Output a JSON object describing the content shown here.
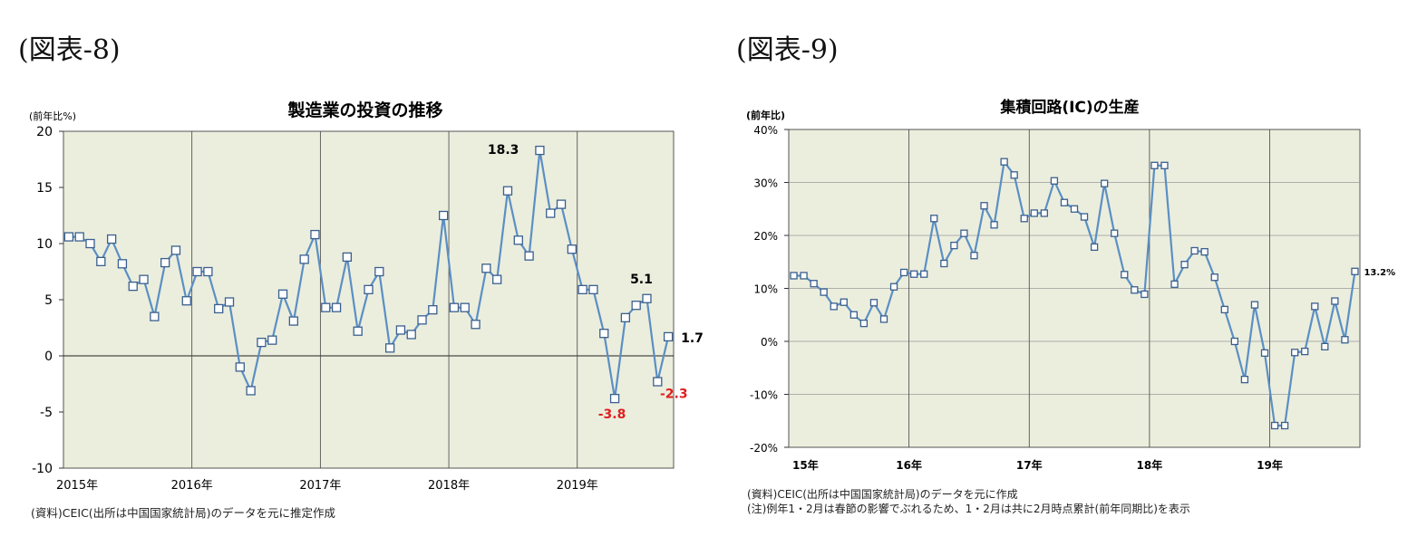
{
  "figures": [
    {
      "label": "(図表-8)"
    },
    {
      "label": "(図表-9)"
    }
  ],
  "chart_data": [
    {
      "type": "line",
      "title": "製造業の投資の推移",
      "ylabel": "(前年比%)",
      "ylim": [
        -10,
        20
      ],
      "yticks": [
        "20",
        "15",
        "10",
        "5",
        "0",
        "-5",
        "-10"
      ],
      "ytick_values": [
        20,
        15,
        10,
        5,
        0,
        -5,
        -10
      ],
      "xticks": [
        "2015年",
        "2016年",
        "2017年",
        "2018年",
        "2019年"
      ],
      "x": [
        "2015-01",
        "2015-02",
        "2015-03",
        "2015-04",
        "2015-05",
        "2015-06",
        "2015-07",
        "2015-08",
        "2015-09",
        "2015-10",
        "2015-11",
        "2015-12",
        "2016-01",
        "2016-02",
        "2016-03",
        "2016-04",
        "2016-05",
        "2016-06",
        "2016-07",
        "2016-08",
        "2016-09",
        "2016-10",
        "2016-11",
        "2016-12",
        "2017-01",
        "2017-02",
        "2017-03",
        "2017-04",
        "2017-05",
        "2017-06",
        "2017-07",
        "2017-08",
        "2017-09",
        "2017-10",
        "2017-11",
        "2017-12",
        "2018-01",
        "2018-02",
        "2018-03",
        "2018-04",
        "2018-05",
        "2018-06",
        "2018-07",
        "2018-08",
        "2018-09",
        "2018-10",
        "2018-11",
        "2018-12",
        "2019-01",
        "2019-02",
        "2019-03",
        "2019-04",
        "2019-05",
        "2019-06",
        "2019-07",
        "2019-08",
        "2019-09"
      ],
      "series": [
        {
          "values": [
            10.6,
            10.6,
            10.0,
            8.4,
            10.4,
            8.2,
            6.2,
            6.8,
            3.5,
            8.3,
            9.4,
            4.9,
            7.5,
            7.5,
            4.2,
            4.8,
            -1.0,
            -3.1,
            1.2,
            1.4,
            5.5,
            3.1,
            8.6,
            10.8,
            4.3,
            4.3,
            8.8,
            2.2,
            5.9,
            7.5,
            0.7,
            2.3,
            1.9,
            3.2,
            4.1,
            12.5,
            4.3,
            4.3,
            2.8,
            7.8,
            6.8,
            14.7,
            10.3,
            8.9,
            18.3,
            12.7,
            13.5,
            9.5,
            5.9,
            5.9,
            2.0,
            -3.8,
            3.4,
            4.5,
            5.1,
            -2.3,
            1.7
          ]
        }
      ],
      "annotations": [
        {
          "text": "18.3",
          "color": "#000000"
        },
        {
          "text": "5.1",
          "color": "#000000"
        },
        {
          "text": "1.7",
          "color": "#000000"
        },
        {
          "text": "-3.8",
          "color": "#e02020"
        },
        {
          "text": "-2.3",
          "color": "#e02020"
        }
      ],
      "source": "(資料)CEIC(出所は中国国家統計局)のデータを元に推定作成",
      "colors": {
        "plot_bg": "#ebeedd",
        "line": "#5b8fc4",
        "marker_edge": "#3a5f8f",
        "negative_label": "#e02020"
      },
      "grid": "vertical year lines + zero line"
    },
    {
      "type": "line",
      "title": "集積回路(IC)の生産",
      "ylabel": "(前年比)",
      "ylim": [
        -20,
        40
      ],
      "yticks": [
        "40%",
        "30%",
        "20%",
        "10%",
        "0%",
        "-10%",
        "-20%"
      ],
      "ytick_values": [
        40,
        30,
        20,
        10,
        0,
        -10,
        -20
      ],
      "xticks": [
        "15年",
        "16年",
        "17年",
        "18年",
        "19年"
      ],
      "x": [
        "2015-01",
        "2015-02",
        "2015-03",
        "2015-04",
        "2015-05",
        "2015-06",
        "2015-07",
        "2015-08",
        "2015-09",
        "2015-10",
        "2015-11",
        "2015-12",
        "2016-01",
        "2016-02",
        "2016-03",
        "2016-04",
        "2016-05",
        "2016-06",
        "2016-07",
        "2016-08",
        "2016-09",
        "2016-10",
        "2016-11",
        "2016-12",
        "2017-01",
        "2017-02",
        "2017-03",
        "2017-04",
        "2017-05",
        "2017-06",
        "2017-07",
        "2017-08",
        "2017-09",
        "2017-10",
        "2017-11",
        "2017-12",
        "2018-01",
        "2018-02",
        "2018-03",
        "2018-04",
        "2018-05",
        "2018-06",
        "2018-07",
        "2018-08",
        "2018-09",
        "2018-10",
        "2018-11",
        "2018-12",
        "2019-01",
        "2019-02",
        "2019-03",
        "2019-04",
        "2019-05",
        "2019-06",
        "2019-07",
        "2019-08",
        "2019-09"
      ],
      "series": [
        {
          "values": [
            12.4,
            12.4,
            10.9,
            9.3,
            6.6,
            7.4,
            5.0,
            3.4,
            7.3,
            4.2,
            10.3,
            13.0,
            12.7,
            12.7,
            23.2,
            14.7,
            18.1,
            20.4,
            16.2,
            25.6,
            22.0,
            33.9,
            31.4,
            23.2,
            24.2,
            24.2,
            30.3,
            26.2,
            25.0,
            23.5,
            17.8,
            29.8,
            20.4,
            12.6,
            9.7,
            8.9,
            33.2,
            33.2,
            10.8,
            14.5,
            17.1,
            16.9,
            12.1,
            6.0,
            0.0,
            -7.2,
            6.9,
            -2.2,
            -15.9,
            -15.9,
            -2.1,
            -1.9,
            6.6,
            -1.0,
            7.6,
            0.3,
            13.2
          ]
        }
      ],
      "annotations": [
        {
          "text": "13.2%",
          "color": "#000000"
        }
      ],
      "source": "(資料)CEIC(出所は中国国家統計局)のデータを元に作成",
      "note": "(注)例年1・2月は春節の影響でぶれるため、1・2月は共に2月時点累計(前年同期比)を表示",
      "colors": {
        "plot_bg": "#ebeedd",
        "line": "#5b8fc4",
        "marker_edge": "#3a5f8f"
      },
      "grid": "horizontal % lines + vertical year lines"
    }
  ]
}
